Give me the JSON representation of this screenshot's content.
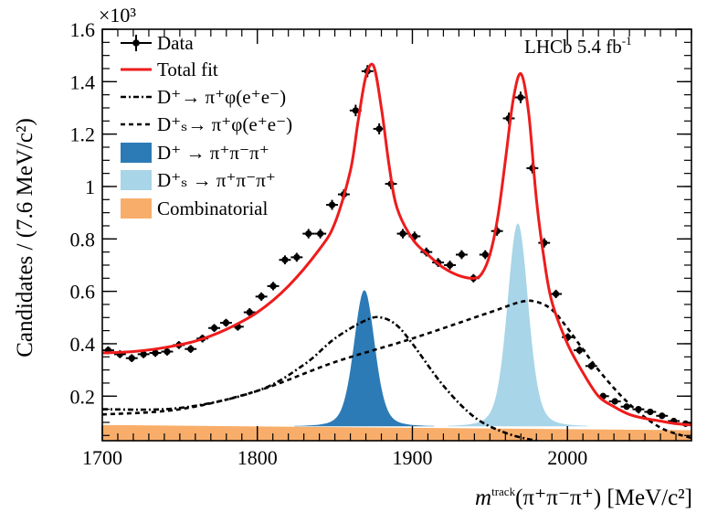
{
  "chart_data": {
    "type": "line",
    "title": "",
    "annotation": {
      "experiment": "LHCb 5.4 fb",
      "exponent": "-1"
    },
    "xlabel": {
      "m": "m",
      "sup": "track",
      "rest": "(π⁺π⁻π⁺) [MeV/c²]"
    },
    "ylabel": "Candidates / (7.6 MeV/c²)",
    "y_multiplier": "×10³",
    "xlim": [
      1700,
      2080
    ],
    "ylim": [
      0.03,
      1.6
    ],
    "x_ticks": [
      1700,
      1800,
      1900,
      2000
    ],
    "x_tick_labels": [
      "1700",
      "1800",
      "1900",
      "2000"
    ],
    "y_ticks": [
      0.2,
      0.4,
      0.6,
      0.8,
      1.0,
      1.2,
      1.4,
      1.6
    ],
    "y_tick_labels": [
      "0.2",
      "0.4",
      "0.6",
      "0.8",
      "1",
      "1.2",
      "1.4",
      "1.6"
    ],
    "legend": [
      {
        "key": "data",
        "label": "Data",
        "style": "points"
      },
      {
        "key": "total",
        "label": "Total fit",
        "style": "line",
        "color": "#ee1c1c"
      },
      {
        "key": "dphi",
        "label": "D⁺→ π⁺φ(e⁺e⁻)",
        "style": "dashdot",
        "color": "#000000"
      },
      {
        "key": "dsphi",
        "label": "D⁺ₛ→ π⁺φ(e⁺e⁻)",
        "style": "dash",
        "color": "#000000"
      },
      {
        "key": "d3pi",
        "label": "D⁺ → π⁺π⁻π⁺",
        "style": "fill",
        "color": "#2c7bb6"
      },
      {
        "key": "ds3pi",
        "label": "D⁺ₛ → π⁺π⁻π⁺",
        "style": "fill",
        "color": "#a8d5e8"
      },
      {
        "key": "comb",
        "label": "Combinatorial",
        "style": "fill",
        "color": "#f8ae6a"
      }
    ],
    "bin_half_width": 3.8,
    "data_points": [
      [
        1703.8,
        0.375,
        0.015
      ],
      [
        1711.4,
        0.36,
        0.015
      ],
      [
        1719.0,
        0.345,
        0.015
      ],
      [
        1726.6,
        0.36,
        0.015
      ],
      [
        1734.2,
        0.365,
        0.015
      ],
      [
        1741.8,
        0.37,
        0.015
      ],
      [
        1749.4,
        0.395,
        0.015
      ],
      [
        1757.0,
        0.38,
        0.015
      ],
      [
        1764.6,
        0.42,
        0.015
      ],
      [
        1772.2,
        0.46,
        0.015
      ],
      [
        1779.8,
        0.48,
        0.015
      ],
      [
        1787.4,
        0.465,
        0.015
      ],
      [
        1795.0,
        0.52,
        0.016
      ],
      [
        1802.6,
        0.58,
        0.016
      ],
      [
        1810.2,
        0.62,
        0.016
      ],
      [
        1817.8,
        0.72,
        0.017
      ],
      [
        1825.4,
        0.73,
        0.017
      ],
      [
        1833.0,
        0.82,
        0.018
      ],
      [
        1840.6,
        0.82,
        0.018
      ],
      [
        1848.2,
        0.93,
        0.019
      ],
      [
        1855.8,
        0.97,
        0.019
      ],
      [
        1863.4,
        1.29,
        0.022
      ],
      [
        1871.0,
        1.44,
        0.023
      ],
      [
        1878.6,
        1.22,
        0.021
      ],
      [
        1886.2,
        1.01,
        0.02
      ],
      [
        1893.8,
        0.82,
        0.018
      ],
      [
        1901.4,
        0.81,
        0.018
      ],
      [
        1909.0,
        0.75,
        0.017
      ],
      [
        1916.6,
        0.71,
        0.017
      ],
      [
        1924.2,
        0.7,
        0.017
      ],
      [
        1931.8,
        0.74,
        0.017
      ],
      [
        1939.4,
        0.65,
        0.016
      ],
      [
        1947.0,
        0.74,
        0.017
      ],
      [
        1954.6,
        0.83,
        0.018
      ],
      [
        1962.2,
        1.26,
        0.022
      ],
      [
        1969.8,
        1.34,
        0.022
      ],
      [
        1977.4,
        1.07,
        0.02
      ],
      [
        1985.0,
        0.785,
        0.018
      ],
      [
        1992.6,
        0.59,
        0.016
      ],
      [
        2000.2,
        0.425,
        0.015
      ],
      [
        2007.8,
        0.375,
        0.015
      ],
      [
        2015.4,
        0.315,
        0.014
      ],
      [
        2023.0,
        0.2,
        0.012
      ],
      [
        2030.6,
        0.18,
        0.012
      ],
      [
        2038.2,
        0.16,
        0.011
      ],
      [
        2045.8,
        0.15,
        0.011
      ],
      [
        2053.4,
        0.14,
        0.011
      ],
      [
        2061.0,
        0.125,
        0.011
      ],
      [
        2068.6,
        0.105,
        0.01
      ],
      [
        2076.2,
        0.095,
        0.01
      ]
    ],
    "series": [
      {
        "name": "Total fit",
        "x": [
          1700,
          1720,
          1740,
          1760,
          1780,
          1800,
          1820,
          1840,
          1850,
          1860,
          1865,
          1870,
          1875,
          1880,
          1885,
          1890,
          1900,
          1910,
          1920,
          1930,
          1940,
          1945,
          1950,
          1955,
          1960,
          1965,
          1970,
          1975,
          1980,
          1985,
          1990,
          2000,
          2010,
          2020,
          2030,
          2040,
          2050,
          2060,
          2070,
          2080
        ],
        "y": [
          0.365,
          0.37,
          0.385,
          0.41,
          0.455,
          0.52,
          0.62,
          0.76,
          0.86,
          1.06,
          1.25,
          1.42,
          1.46,
          1.3,
          1.08,
          0.92,
          0.8,
          0.74,
          0.69,
          0.66,
          0.65,
          0.67,
          0.74,
          0.88,
          1.1,
          1.33,
          1.43,
          1.28,
          0.95,
          0.72,
          0.56,
          0.4,
          0.29,
          0.2,
          0.16,
          0.13,
          0.115,
          0.105,
          0.095,
          0.09
        ]
      },
      {
        "name": "D+ → π+φ(e+e−)",
        "x": [
          1700,
          1750,
          1800,
          1830,
          1850,
          1870,
          1880,
          1890,
          1900,
          1920,
          1940,
          1960,
          1980,
          2000,
          2020
        ],
        "y": [
          0.15,
          0.155,
          0.22,
          0.32,
          0.42,
          0.49,
          0.5,
          0.47,
          0.4,
          0.24,
          0.12,
          0.06,
          0.03,
          0.015,
          0.005
        ]
      },
      {
        "name": "Ds+ → π+φ(e+e−)",
        "x": [
          1700,
          1750,
          1800,
          1850,
          1900,
          1950,
          1970,
          1980,
          1990,
          2000,
          2020,
          2040,
          2060,
          2080
        ],
        "y": [
          0.13,
          0.15,
          0.22,
          0.33,
          0.42,
          0.52,
          0.56,
          0.56,
          0.53,
          0.46,
          0.3,
          0.17,
          0.08,
          0.04
        ]
      },
      {
        "name": "D+ → π+π−π+",
        "peak_x": 1869,
        "peak_y": 0.605,
        "sigma": 6.5,
        "base": 0.085
      },
      {
        "name": "Ds+ → π+π−π+",
        "peak_x": 1968,
        "peak_y": 0.86,
        "sigma": 6.5,
        "base": 0.085
      },
      {
        "name": "Combinatorial",
        "x": [
          1700,
          2080
        ],
        "y": [
          0.09,
          0.07
        ]
      }
    ]
  }
}
